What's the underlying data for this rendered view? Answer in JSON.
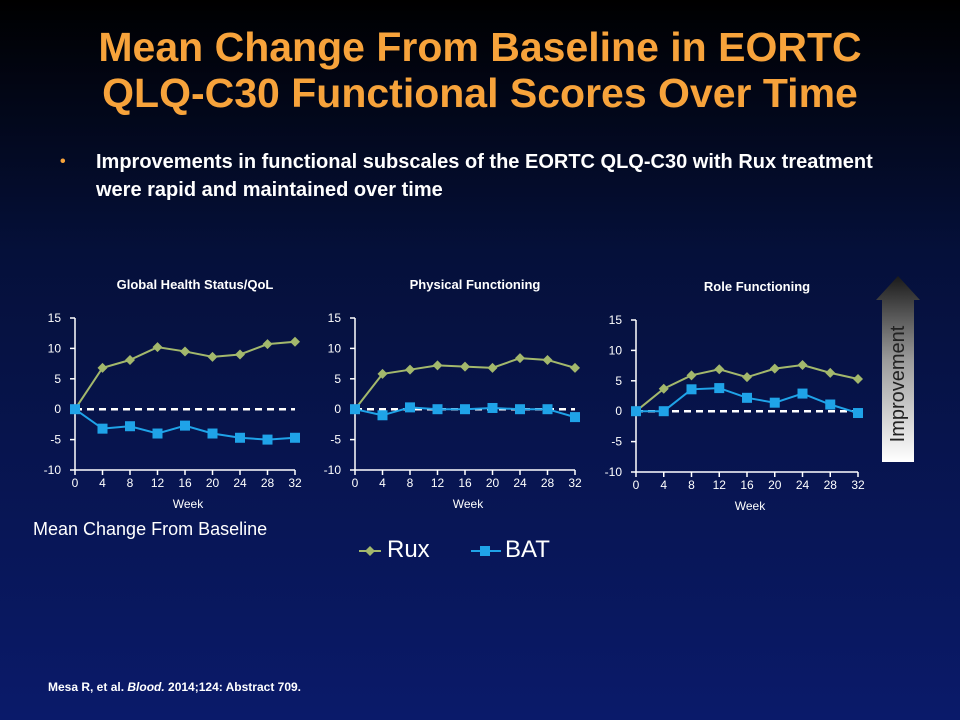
{
  "title_line1": "Mean Change From Baseline in EORTC",
  "title_line2": "QLQ-C30 Functional Scores Over Time",
  "bullet_marker": "•",
  "bullet_text": "Improvements in functional subscales of the EORTC QLQ-C30 with Rux treatment were rapid and maintained over time",
  "y_axis_label": "Mean Change From Baseline",
  "improvement_label": "Improvement",
  "citation": {
    "authors": "Mesa R, et al. ",
    "journal": "Blood.",
    "rest": " 2014;124: Abstract 709."
  },
  "colors": {
    "title": "#f7a33b",
    "rux": "#a3b86c",
    "bat": "#1fa3e8",
    "axis": "#ffffff"
  },
  "legend": {
    "rux": "Rux",
    "bat": "BAT"
  },
  "chart_data": [
    {
      "type": "line",
      "title": "Global Health Status/QoL",
      "xlabel": "Week",
      "ylabel": "",
      "ylim": [
        -10,
        15
      ],
      "yticks": [
        -10,
        -5,
        0,
        5,
        10,
        15
      ],
      "x": [
        0,
        4,
        8,
        12,
        16,
        20,
        24,
        28,
        32
      ],
      "series": [
        {
          "name": "Rux",
          "values": [
            0.0,
            6.8,
            8.1,
            10.2,
            9.5,
            8.6,
            9.0,
            10.7,
            11.1
          ]
        },
        {
          "name": "BAT",
          "values": [
            0.0,
            -3.2,
            -2.8,
            -4.0,
            -2.7,
            -4.0,
            -4.7,
            -5.0,
            -4.7
          ]
        }
      ]
    },
    {
      "type": "line",
      "title": "Physical Functioning",
      "xlabel": "Week",
      "ylabel": "",
      "ylim": [
        -10,
        15
      ],
      "yticks": [
        -10,
        -5,
        0,
        5,
        10,
        15
      ],
      "x": [
        0,
        4,
        8,
        12,
        16,
        20,
        24,
        28,
        32
      ],
      "series": [
        {
          "name": "Rux",
          "values": [
            0.0,
            5.8,
            6.5,
            7.2,
            7.0,
            6.8,
            8.4,
            8.1,
            6.8
          ]
        },
        {
          "name": "BAT",
          "values": [
            0.0,
            -1.0,
            0.3,
            0.0,
            0.0,
            0.2,
            0.0,
            0.0,
            -1.3
          ]
        }
      ]
    },
    {
      "type": "line",
      "title": "Role Functioning",
      "xlabel": "Week",
      "ylabel": "",
      "ylim": [
        -10,
        15
      ],
      "yticks": [
        -10,
        -5,
        0,
        5,
        10,
        15
      ],
      "x": [
        0,
        4,
        8,
        12,
        16,
        20,
        24,
        28,
        32
      ],
      "series": [
        {
          "name": "Rux",
          "values": [
            0.0,
            3.7,
            5.9,
            6.9,
            5.6,
            7.0,
            7.6,
            6.3,
            5.3
          ]
        },
        {
          "name": "BAT",
          "values": [
            0.0,
            0.0,
            3.6,
            3.8,
            2.2,
            1.4,
            2.9,
            1.1,
            -0.3
          ]
        }
      ]
    }
  ]
}
